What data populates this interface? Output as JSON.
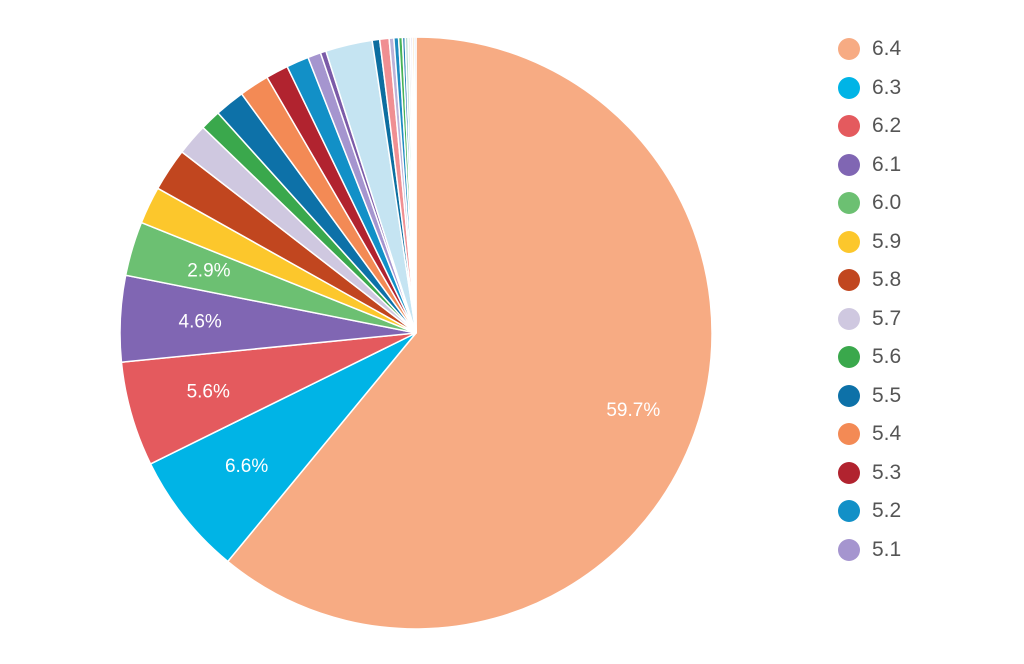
{
  "chart_data": {
    "type": "pie",
    "slices": [
      {
        "label": "6.4",
        "value": 59.7,
        "color": "#f7ab83",
        "data_label": "59.7%"
      },
      {
        "label": "6.3",
        "value": 6.6,
        "color": "#00b4e6",
        "data_label": "6.6%"
      },
      {
        "label": "6.2",
        "value": 5.6,
        "color": "#e45a5e",
        "data_label": "5.6%"
      },
      {
        "label": "6.1",
        "value": 4.6,
        "color": "#8066b3",
        "data_label": "4.6%"
      },
      {
        "label": "6.0",
        "value": 2.9,
        "color": "#6cc072",
        "data_label": "2.9%"
      },
      {
        "label": "5.9",
        "value": 2.0,
        "color": "#fcc72c",
        "data_label": ""
      },
      {
        "label": "5.8",
        "value": 2.3,
        "color": "#c1461f",
        "data_label": ""
      },
      {
        "label": "5.7",
        "value": 1.7,
        "color": "#cfc8e0",
        "data_label": ""
      },
      {
        "label": "5.6",
        "value": 1.1,
        "color": "#3aa84c",
        "data_label": ""
      },
      {
        "label": "5.5",
        "value": 1.6,
        "color": "#0d71a8",
        "data_label": ""
      },
      {
        "label": "5.4",
        "value": 1.6,
        "color": "#f38a55",
        "data_label": ""
      },
      {
        "label": "5.3",
        "value": 1.2,
        "color": "#b1232f",
        "data_label": ""
      },
      {
        "label": "5.2",
        "value": 1.2,
        "color": "#1290c7",
        "data_label": ""
      },
      {
        "label": "5.1",
        "value": 0.7,
        "color": "#a595cf",
        "data_label": ""
      },
      {
        "label": "",
        "value": 0.3,
        "color": "#7b5ba8",
        "data_label": ""
      },
      {
        "label": "",
        "value": 2.5,
        "color": "#c5e4f2",
        "data_label": ""
      },
      {
        "label": "",
        "value": 0.4,
        "color": "#0c6ea0",
        "data_label": ""
      },
      {
        "label": "",
        "value": 0.5,
        "color": "#f08f92",
        "data_label": ""
      },
      {
        "label": "",
        "value": 0.25,
        "color": "#bdb3d8",
        "data_label": ""
      },
      {
        "label": "",
        "value": 0.25,
        "color": "#1e8bc0",
        "data_label": ""
      },
      {
        "label": "",
        "value": 0.2,
        "color": "#47b258",
        "data_label": ""
      },
      {
        "label": "",
        "value": 0.15,
        "color": "#2d7fb8",
        "data_label": ""
      },
      {
        "label": "",
        "value": 0.15,
        "color": "#b6ded0",
        "data_label": ""
      },
      {
        "label": "",
        "value": 0.12,
        "color": "#e4e4e4",
        "data_label": ""
      },
      {
        "label": "",
        "value": 0.1,
        "color": "#d9d0e8",
        "data_label": ""
      },
      {
        "label": "",
        "value": 0.1,
        "color": "#f2c98c",
        "data_label": ""
      },
      {
        "label": "",
        "value": 0.1,
        "color": "#c9dcef",
        "data_label": ""
      }
    ],
    "legend": [
      "6.4",
      "6.3",
      "6.2",
      "6.1",
      "6.0",
      "5.9",
      "5.8",
      "5.7",
      "5.6",
      "5.5",
      "5.4",
      "5.3",
      "5.2",
      "5.1"
    ],
    "legend_position": "right",
    "start_angle": "12 o'clock",
    "direction": "clockwise"
  }
}
